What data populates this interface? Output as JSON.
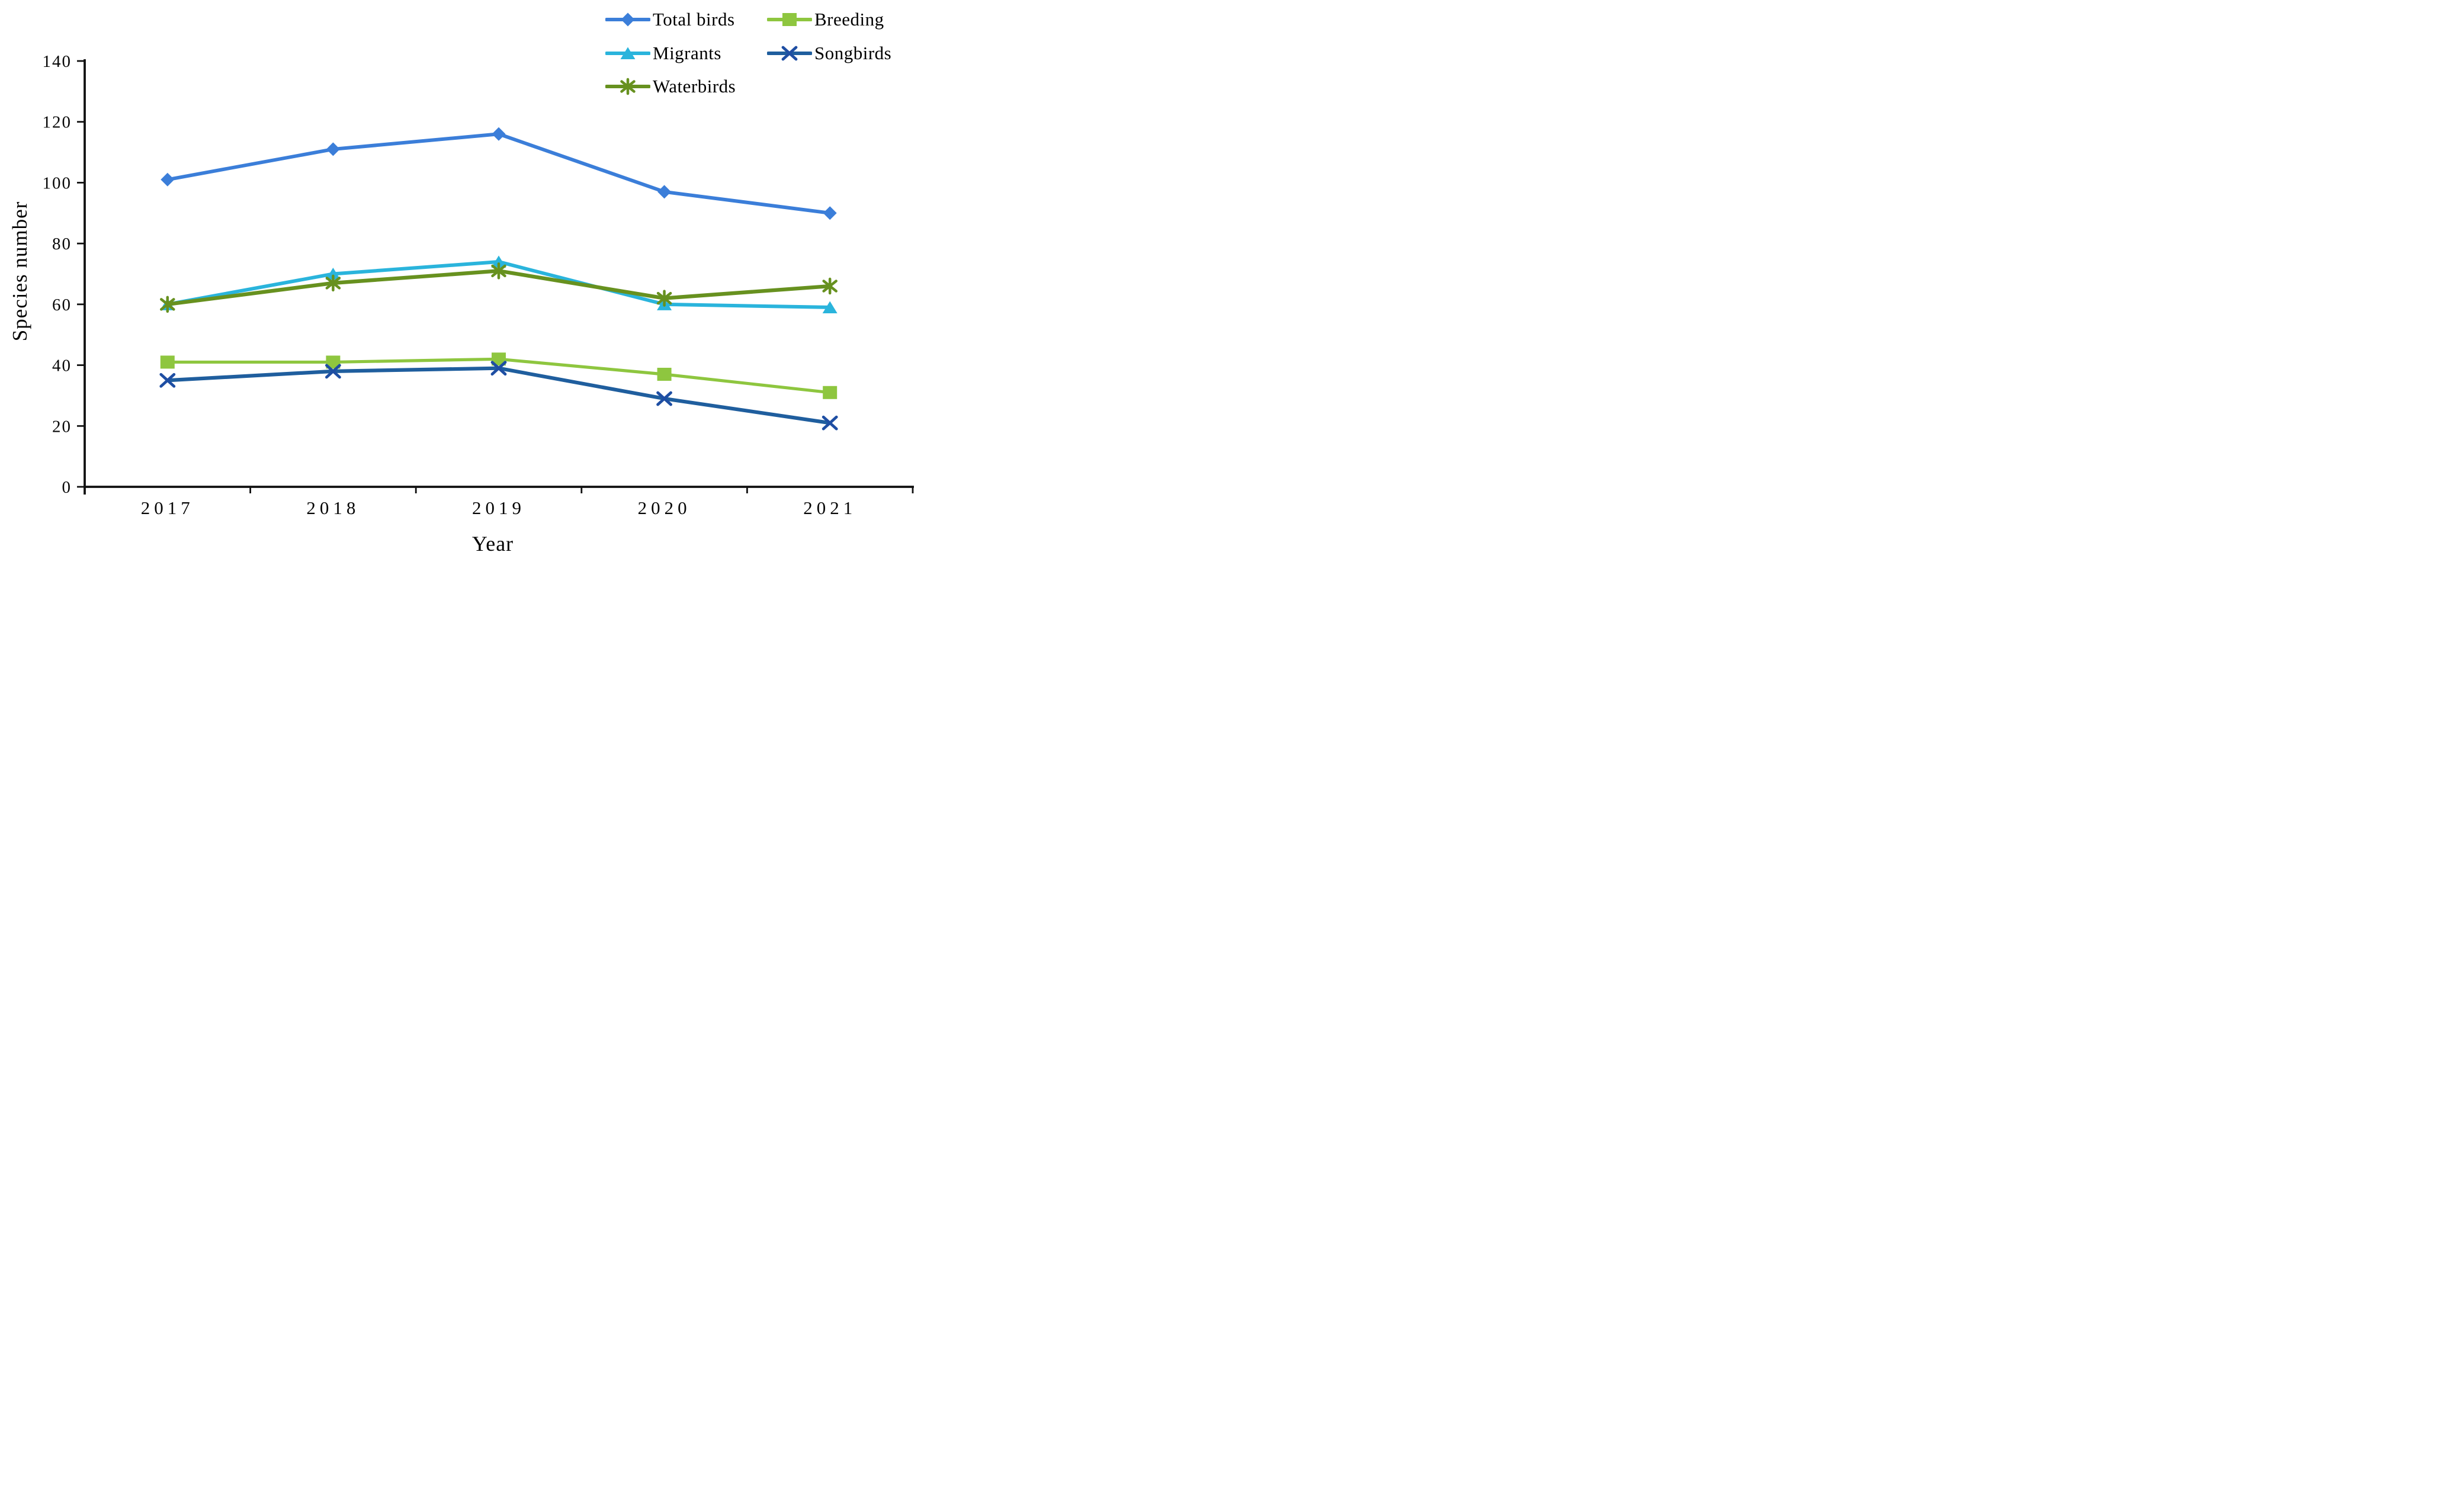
{
  "chart_data": {
    "type": "line",
    "title": "",
    "xlabel": "Year",
    "ylabel": "Species number",
    "categories": [
      "2017",
      "2018",
      "2019",
      "2020",
      "2021"
    ],
    "ylim": [
      0,
      140
    ],
    "yticks": [
      0,
      20,
      40,
      60,
      80,
      100,
      120,
      140
    ],
    "grid": "off",
    "legend_position": "top-right-two-columns",
    "series": [
      {
        "name": "Total birds",
        "marker": "diamond",
        "color": "#3B7ED9",
        "values": [
          101,
          111,
          116,
          97,
          90
        ]
      },
      {
        "name": "Breeding",
        "marker": "square",
        "color": "#8EC63F",
        "values": [
          41,
          41,
          42,
          37,
          31
        ]
      },
      {
        "name": "Migrants",
        "marker": "triangle",
        "color": "#2AB4DC",
        "values": [
          60,
          70,
          74,
          60,
          59
        ]
      },
      {
        "name": "Songbirds",
        "marker": "x",
        "color": "#1F5E9E",
        "marker_color": "#1E4EA3",
        "values": [
          35,
          38,
          39,
          29,
          21
        ]
      },
      {
        "name": "Waterbirds",
        "marker": "asterisk",
        "color": "#67911F",
        "values": [
          60,
          67,
          71,
          62,
          66
        ]
      }
    ],
    "legend_order": [
      "Total birds",
      "Breeding",
      "Migrants",
      "Songbirds",
      "Waterbirds"
    ]
  }
}
